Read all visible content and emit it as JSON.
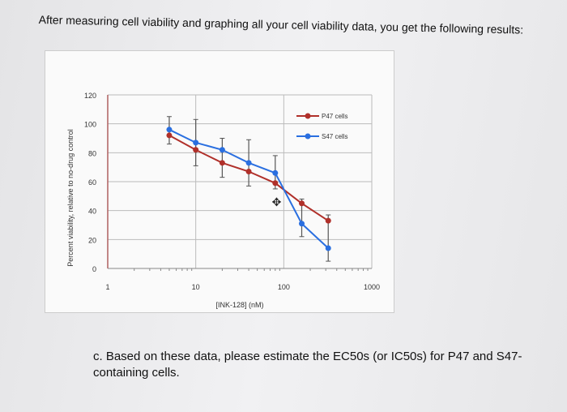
{
  "intro_text": "After measuring cell viability and graphing all your cell viability data, you get the following results:",
  "question_text": "c. Based on these data, please estimate the EC50s (or IC50s) for P47 and S47-containing cells.",
  "chart_data": {
    "type": "line",
    "title": "",
    "xlabel": "[INK-128] (nM)",
    "ylabel": "Percent viability, relative to no-drug control",
    "xscale": "log",
    "xlim": [
      1,
      1000
    ],
    "ylim": [
      0,
      120
    ],
    "xticks": [
      "1",
      "10",
      "100",
      "1000"
    ],
    "yticks": [
      "0",
      "20",
      "40",
      "60",
      "80",
      "100",
      "120"
    ],
    "grid": true,
    "legend_position": "top-right",
    "x": [
      5,
      10,
      20,
      40,
      80,
      160,
      320
    ],
    "series": [
      {
        "name": "P47 cells",
        "color": "#b0302a",
        "values": [
          92,
          82,
          73,
          67,
          59,
          45,
          33
        ]
      },
      {
        "name": "S47 cells",
        "color": "#2a6fe0",
        "values": [
          96,
          87,
          82,
          73,
          66,
          31,
          14
        ]
      }
    ],
    "error_bars": {
      "low": [
        86,
        71,
        63,
        57,
        55,
        22,
        5
      ],
      "high": [
        105,
        103,
        90,
        89,
        78,
        48,
        37
      ]
    }
  }
}
